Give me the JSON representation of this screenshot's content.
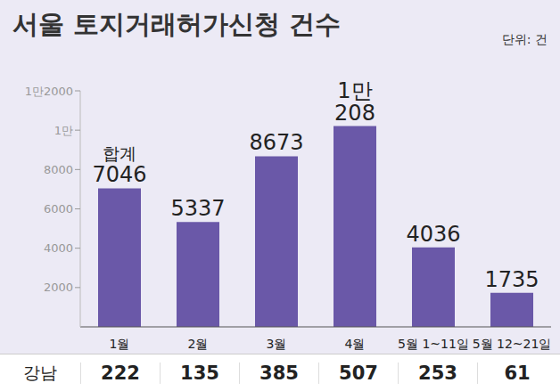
{
  "chart_data": {
    "type": "bar",
    "title": "서울 토지거래허가신청 건수",
    "ylabel": "단위: 건",
    "categories": [
      "1월",
      "2월",
      "3월",
      "4월",
      "5월 1~11일",
      "5월 12~21일"
    ],
    "values": [
      7046,
      5337,
      8673,
      10208,
      4036,
      1735
    ],
    "value_labels": [
      "7046",
      "5337",
      "8673",
      "1만\n208",
      "4036",
      "1735"
    ],
    "data_labels": true,
    "annotations": [
      {
        "text": "합계",
        "category": "1월"
      }
    ],
    "color": "#6a58a8",
    "ylim": [
      0,
      12000
    ],
    "yticks": [
      2000,
      4000,
      6000,
      8000,
      {
        "value": 10000,
        "label": "1만"
      },
      {
        "value": 12000,
        "label": "1만2000"
      }
    ],
    "grid": false
  },
  "table": {
    "row_label": "강남",
    "values": [
      222,
      135,
      385,
      507,
      253,
      61
    ]
  }
}
